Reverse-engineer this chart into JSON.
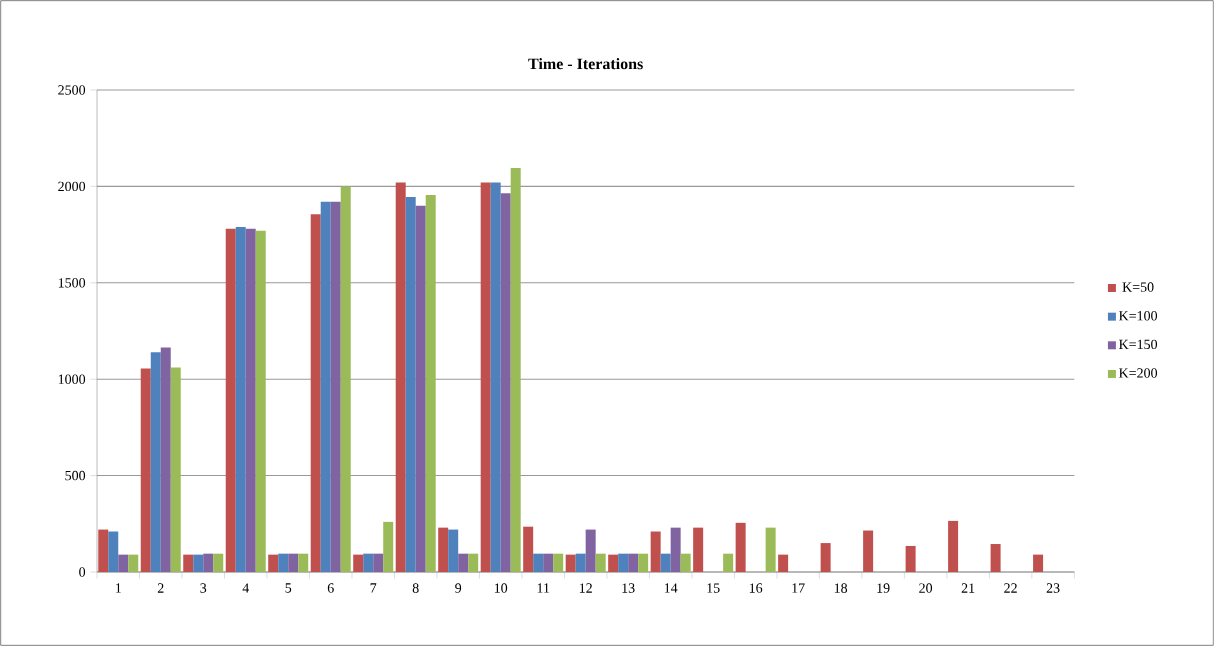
{
  "chart_data": {
    "type": "bar",
    "title": "Time - Iterations",
    "categories": [
      "1",
      "2",
      "3",
      "4",
      "5",
      "6",
      "7",
      "8",
      "9",
      "10",
      "11",
      "12",
      "13",
      "14",
      "15",
      "16",
      "17",
      "18",
      "19",
      "20",
      "21",
      "22",
      "23"
    ],
    "series": [
      {
        "name": "K=50",
        "color": "#c0504d",
        "values": [
          220,
          1055,
          90,
          1780,
          90,
          1855,
          90,
          2020,
          230,
          2020,
          235,
          90,
          90,
          210,
          230,
          255,
          90,
          150,
          215,
          135,
          265,
          145,
          90
        ]
      },
      {
        "name": "K=100",
        "color": "#4f81bd",
        "values": [
          210,
          1140,
          90,
          1790,
          95,
          1920,
          95,
          1945,
          220,
          2020,
          95,
          95,
          95,
          95,
          null,
          null,
          null,
          null,
          null,
          null,
          null,
          null,
          null
        ]
      },
      {
        "name": "K=150",
        "color": "#8064a2",
        "values": [
          90,
          1165,
          95,
          1780,
          95,
          1920,
          95,
          1900,
          95,
          1965,
          95,
          220,
          95,
          230,
          null,
          null,
          null,
          null,
          null,
          null,
          null,
          null,
          null
        ]
      },
      {
        "name": "K=200",
        "color": "#9bbb59",
        "values": [
          90,
          1060,
          95,
          1770,
          95,
          2000,
          260,
          1955,
          95,
          2095,
          95,
          95,
          95,
          95,
          95,
          230,
          null,
          null,
          null,
          null,
          null,
          null,
          null
        ]
      }
    ],
    "ylim": [
      0,
      2500
    ],
    "yticks": [
      0,
      500,
      1000,
      1500,
      2000,
      2500
    ],
    "grid": "y",
    "legend": "right"
  }
}
